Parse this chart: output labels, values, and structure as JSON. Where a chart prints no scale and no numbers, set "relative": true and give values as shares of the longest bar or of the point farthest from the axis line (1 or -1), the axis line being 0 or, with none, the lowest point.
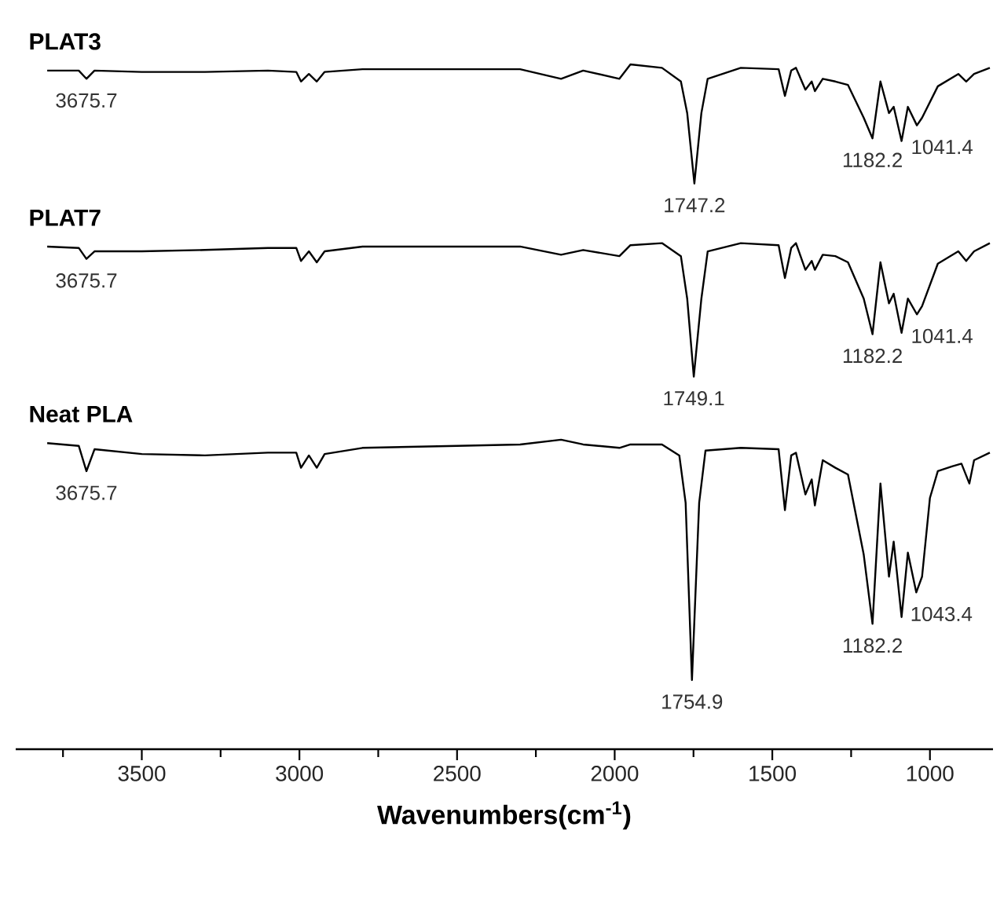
{
  "chart_data": {
    "type": "line",
    "relative": true,
    "xlabel": "Wavenumbers(cm$^{-1}$)",
    "xlim": [
      3900,
      800
    ],
    "xticks": [
      {
        "value": 3750,
        "label": null
      },
      3500,
      {
        "value": 3250,
        "label": null
      },
      3000,
      {
        "value": 2750,
        "label": null
      },
      2500,
      {
        "value": 2250,
        "label": null
      },
      2000,
      {
        "value": 1750,
        "label": null
      },
      1500,
      {
        "value": 1250,
        "label": null
      },
      1000
    ],
    "series": [
      {
        "name": "PLAT3",
        "color": "#000000",
        "x": [
          3800,
          3700,
          3675.7,
          3650,
          3500,
          3300,
          3100,
          3010,
          2995,
          2970,
          2945,
          2920,
          2800,
          2500,
          2300,
          2170,
          2100,
          1985,
          1950,
          1850,
          1790,
          1770,
          1747.2,
          1725,
          1705,
          1600,
          1480,
          1460,
          1440,
          1425,
          1395,
          1375,
          1365,
          1340,
          1300,
          1260,
          1210,
          1182.2,
          1157,
          1130,
          1115,
          1090,
          1070,
          1041.4,
          1025,
          975,
          910,
          885,
          860,
          810
        ],
        "values": [
          0.991,
          0.991,
          0.979,
          0.991,
          0.989,
          0.989,
          0.991,
          0.989,
          0.975,
          0.986,
          0.975,
          0.989,
          0.993,
          0.993,
          0.993,
          0.979,
          0.991,
          0.979,
          1.0,
          0.995,
          0.975,
          0.929,
          0.826,
          0.929,
          0.979,
          0.995,
          0.993,
          0.954,
          0.991,
          0.995,
          0.963,
          0.975,
          0.961,
          0.979,
          0.975,
          0.97,
          0.922,
          0.892,
          0.975,
          0.929,
          0.938,
          0.888,
          0.938,
          0.911,
          0.922,
          0.968,
          0.986,
          0.975,
          0.986,
          0.995
        ]
      },
      {
        "name": "PLAT7",
        "color": "#000000",
        "x": [
          3800,
          3700,
          3675.7,
          3650,
          3500,
          3300,
          3100,
          3010,
          2995,
          2970,
          2945,
          2920,
          2800,
          2500,
          2300,
          2170,
          2100,
          1985,
          1950,
          1850,
          1790,
          1770,
          1749.1,
          1725,
          1705,
          1600,
          1480,
          1460,
          1440,
          1425,
          1395,
          1375,
          1365,
          1340,
          1300,
          1260,
          1210,
          1182.2,
          1157,
          1130,
          1115,
          1090,
          1070,
          1041.4,
          1025,
          975,
          910,
          885,
          860,
          810
        ],
        "values": [
          0.734,
          0.732,
          0.716,
          0.727,
          0.727,
          0.729,
          0.732,
          0.732,
          0.713,
          0.727,
          0.711,
          0.727,
          0.734,
          0.734,
          0.734,
          0.722,
          0.729,
          0.72,
          0.736,
          0.739,
          0.72,
          0.658,
          0.544,
          0.658,
          0.727,
          0.739,
          0.736,
          0.688,
          0.732,
          0.739,
          0.7,
          0.713,
          0.7,
          0.722,
          0.72,
          0.711,
          0.658,
          0.606,
          0.711,
          0.651,
          0.665,
          0.608,
          0.658,
          0.635,
          0.647,
          0.709,
          0.727,
          0.713,
          0.727,
          0.739
        ]
      },
      {
        "name": "Neat PLA",
        "color": "#000000",
        "x": [
          3800,
          3700,
          3675.7,
          3650,
          3500,
          3300,
          3100,
          3010,
          2995,
          2970,
          2945,
          2920,
          2800,
          2500,
          2300,
          2170,
          2100,
          1985,
          1950,
          1850,
          1795,
          1775,
          1754.9,
          1732,
          1712,
          1600,
          1480,
          1460,
          1440,
          1425,
          1395,
          1375,
          1365,
          1340,
          1300,
          1260,
          1210,
          1182.2,
          1157,
          1130,
          1115,
          1090,
          1070,
          1043.4,
          1025,
          1000,
          975,
          930,
          900,
          875,
          860,
          810
        ],
        "values": [
          0.447,
          0.443,
          0.406,
          0.438,
          0.431,
          0.429,
          0.433,
          0.433,
          0.411,
          0.429,
          0.411,
          0.431,
          0.44,
          0.443,
          0.445,
          0.452,
          0.445,
          0.44,
          0.445,
          0.445,
          0.429,
          0.36,
          0.101,
          0.36,
          0.436,
          0.44,
          0.438,
          0.349,
          0.429,
          0.433,
          0.372,
          0.394,
          0.356,
          0.422,
          0.411,
          0.401,
          0.284,
          0.183,
          0.388,
          0.252,
          0.303,
          0.193,
          0.287,
          0.229,
          0.252,
          0.367,
          0.406,
          0.413,
          0.417,
          0.388,
          0.422,
          0.433
        ]
      }
    ],
    "annotations": [
      {
        "text": "3675.7",
        "x": 3675.7,
        "y": 0.979
      },
      {
        "text": "1747.2",
        "x": 1747.2,
        "y": 0.826
      },
      {
        "text": "1182.2",
        "x": 1182.2,
        "y": 0.892
      },
      {
        "text": "1041.4",
        "x": 1041.4,
        "y": 0.911
      },
      {
        "text": "3675.7",
        "x": 3675.7,
        "y": 0.716
      },
      {
        "text": "1749.1",
        "x": 1749.1,
        "y": 0.544
      },
      {
        "text": "1182.2",
        "x": 1182.2,
        "y": 0.606
      },
      {
        "text": "1041.4",
        "x": 1041.4,
        "y": 0.635
      },
      {
        "text": "3675.7",
        "x": 3675.7,
        "y": 0.406
      },
      {
        "text": "1754.9",
        "x": 1754.9,
        "y": 0.101
      },
      {
        "text": "1182.2",
        "x": 1182.2,
        "y": 0.183
      },
      {
        "text": "1043.4",
        "x": 1043.4,
        "y": 0.229
      }
    ]
  }
}
